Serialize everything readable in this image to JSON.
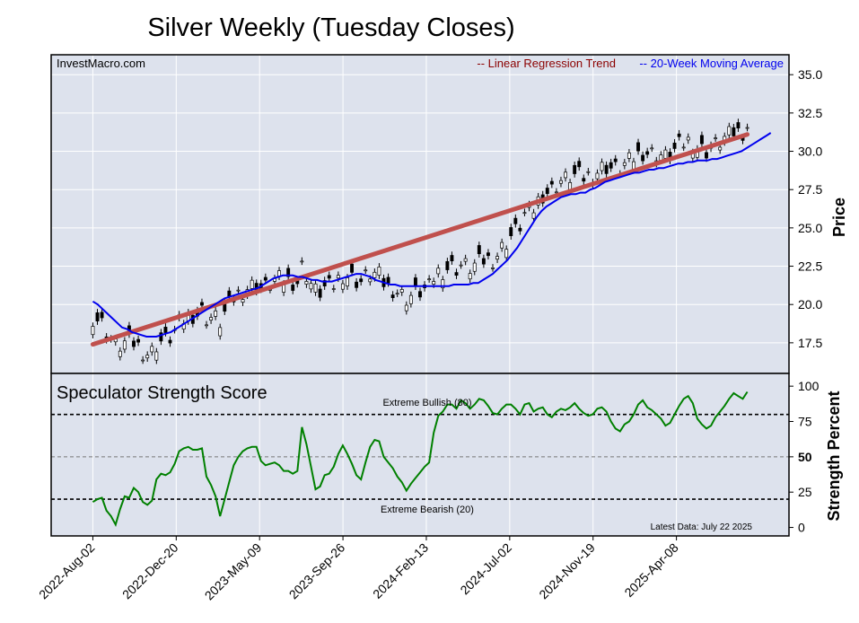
{
  "chart_data": {
    "type": "candlestick_with_indicator",
    "title": "Silver Weekly (Tuesday Closes)",
    "source_label": "InvestMacro.com",
    "legend": {
      "trend": "-- Linear Regression Trend",
      "ma": "-- 20-Week Moving Average",
      "position": "top-right"
    },
    "colors": {
      "panel_bg": "#dde2ed",
      "trend": "#c0504d",
      "ma": "#0000ee",
      "indicator": "#008000",
      "grid": "#ffffff"
    },
    "x_tick_labels": [
      "2022-Aug-02",
      "2022-Dec-20",
      "2023-May-09",
      "2023-Sep-26",
      "2024-Feb-13",
      "2024-Jul-02",
      "2024-Nov-19",
      "2025-Apr-08"
    ],
    "x_range_weeks": [
      -10,
      167
    ],
    "price_panel": {
      "ylabel": "Price",
      "ylim": [
        15.5,
        36.3
      ],
      "yticks": [
        17.5,
        20.0,
        22.5,
        25.0,
        27.5,
        30.0,
        32.5,
        35.0
      ],
      "ytick_labels": [
        "17.5",
        "20.0",
        "22.5",
        "25.0",
        "27.5",
        "30.0",
        "32.5",
        "35.0"
      ],
      "trend_line": {
        "start_week": 0,
        "end_week": 157,
        "start_value": 17.4,
        "end_value": 31.1
      },
      "moving_average": [
        20.2,
        20.0,
        19.7,
        19.4,
        19.1,
        18.8,
        18.5,
        18.4,
        18.2,
        18.1,
        18.0,
        17.9,
        17.9,
        17.9,
        18.0,
        18.1,
        18.2,
        18.4,
        18.6,
        18.8,
        19.0,
        19.2,
        19.4,
        19.6,
        19.8,
        20.0,
        20.2,
        20.4,
        20.5,
        20.6,
        20.7,
        20.8,
        20.9,
        21.0,
        21.1,
        21.3,
        21.5,
        21.7,
        21.8,
        21.9,
        21.9,
        21.9,
        21.8,
        21.8,
        21.7,
        21.6,
        21.6,
        21.5,
        21.5,
        21.5,
        21.6,
        21.7,
        21.8,
        21.9,
        22.0,
        22.0,
        21.9,
        21.8,
        21.6,
        21.5,
        21.4,
        21.3,
        21.3,
        21.2,
        21.2,
        21.2,
        21.2,
        21.2,
        21.2,
        21.2,
        21.2,
        21.2,
        21.2,
        21.2,
        21.3,
        21.3,
        21.3,
        21.3,
        21.4,
        21.4,
        21.6,
        21.8,
        22.0,
        22.3,
        22.6,
        22.9,
        23.3,
        23.7,
        24.2,
        24.7,
        25.2,
        25.7,
        26.1,
        26.4,
        26.6,
        26.8,
        27.0,
        27.1,
        27.2,
        27.2,
        27.3,
        27.3,
        27.5,
        27.6,
        27.8,
        28.0,
        28.1,
        28.2,
        28.3,
        28.4,
        28.5,
        28.6,
        28.6,
        28.7,
        28.8,
        28.8,
        28.9,
        28.9,
        29.0,
        29.1,
        29.2,
        29.2,
        29.3,
        29.3,
        29.4,
        29.4,
        29.4,
        29.5,
        29.5,
        29.6,
        29.7,
        29.8,
        29.9,
        30.0,
        30.2,
        30.4,
        30.6,
        30.8,
        31.0,
        31.2
      ],
      "ma_start_week": 0,
      "ma_step_weeks": 1.17
    },
    "indicator_panel": {
      "title": "Speculator Strength Score",
      "ylabel": "Strength Percent",
      "ylim": [
        -6,
        109
      ],
      "yticks": [
        0,
        25,
        50,
        75,
        100
      ],
      "ytick_labels": [
        "0",
        "25",
        "50",
        "75",
        "100"
      ],
      "extreme_bullish": {
        "value": 80,
        "label": "Extreme Bullish (80)"
      },
      "extreme_bearish": {
        "value": 20,
        "label": "Extreme Bearish (20)"
      },
      "midline": {
        "value": 50
      },
      "latest_label": "Latest Data: July 22 2025",
      "series": [
        18,
        20,
        21,
        12,
        8,
        2,
        13,
        22,
        21,
        28,
        25,
        18,
        16,
        19,
        34,
        38,
        37,
        39,
        45,
        54,
        56,
        57,
        55,
        55,
        56,
        36,
        30,
        22,
        8,
        20,
        32,
        44,
        50,
        54,
        56,
        57,
        57,
        47,
        44,
        45,
        46,
        44,
        40,
        40,
        38,
        40,
        71,
        59,
        43,
        27,
        29,
        37,
        38,
        43,
        52,
        58,
        52,
        45,
        37,
        34,
        46,
        57,
        62,
        61,
        50,
        46,
        42,
        36,
        32,
        26,
        31,
        35,
        39,
        43,
        46,
        67,
        79,
        82,
        87,
        87,
        84,
        90,
        88,
        84,
        87,
        91,
        90,
        86,
        81,
        80,
        84,
        87,
        87,
        84,
        80,
        87,
        88,
        82,
        84,
        85,
        80,
        78,
        82,
        84,
        83,
        85,
        88,
        84,
        81,
        79,
        80,
        84,
        85,
        82,
        75,
        70,
        68,
        73,
        75,
        80,
        87,
        90,
        85,
        83,
        80,
        77,
        72,
        74,
        80,
        86,
        91,
        93,
        88,
        77,
        73,
        70,
        72,
        78,
        82,
        86,
        91,
        95,
        93,
        91,
        96
      ]
    }
  }
}
